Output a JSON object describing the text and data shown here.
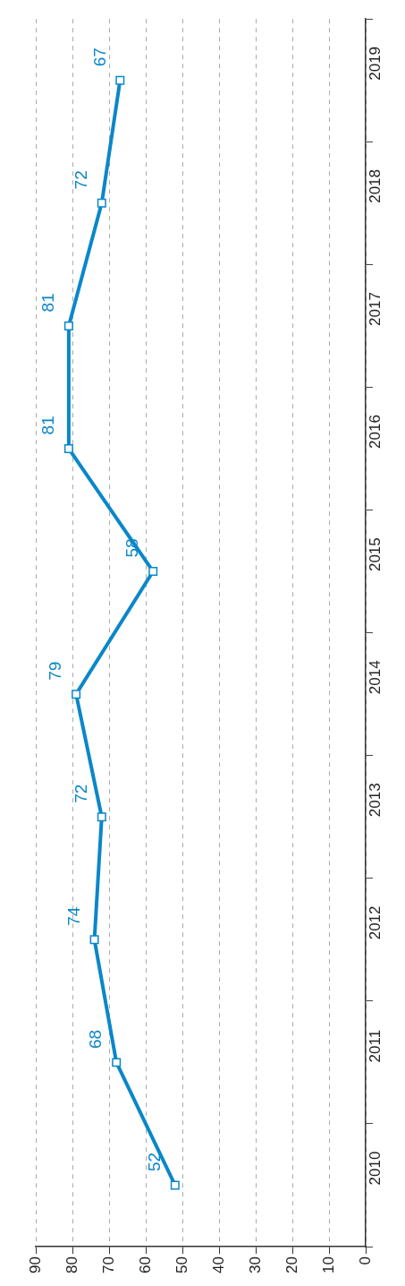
{
  "chart_data": {
    "type": "line",
    "orientation": "horizontal",
    "categories": [
      "2019",
      "2018",
      "2017",
      "2016",
      "2015",
      "2014",
      "2013",
      "2012",
      "2011",
      "2010"
    ],
    "series": [
      {
        "color": "#0a87c9",
        "values": [
          67,
          72,
          81,
          81,
          58,
          79,
          72,
          74,
          68,
          52
        ]
      }
    ],
    "xlim": [
      90,
      0
    ],
    "xticks": [
      90,
      80,
      70,
      60,
      50,
      40,
      30,
      20,
      10,
      0
    ],
    "grid": "x",
    "marker": "square",
    "line_style": "solid",
    "data_labels": true
  }
}
